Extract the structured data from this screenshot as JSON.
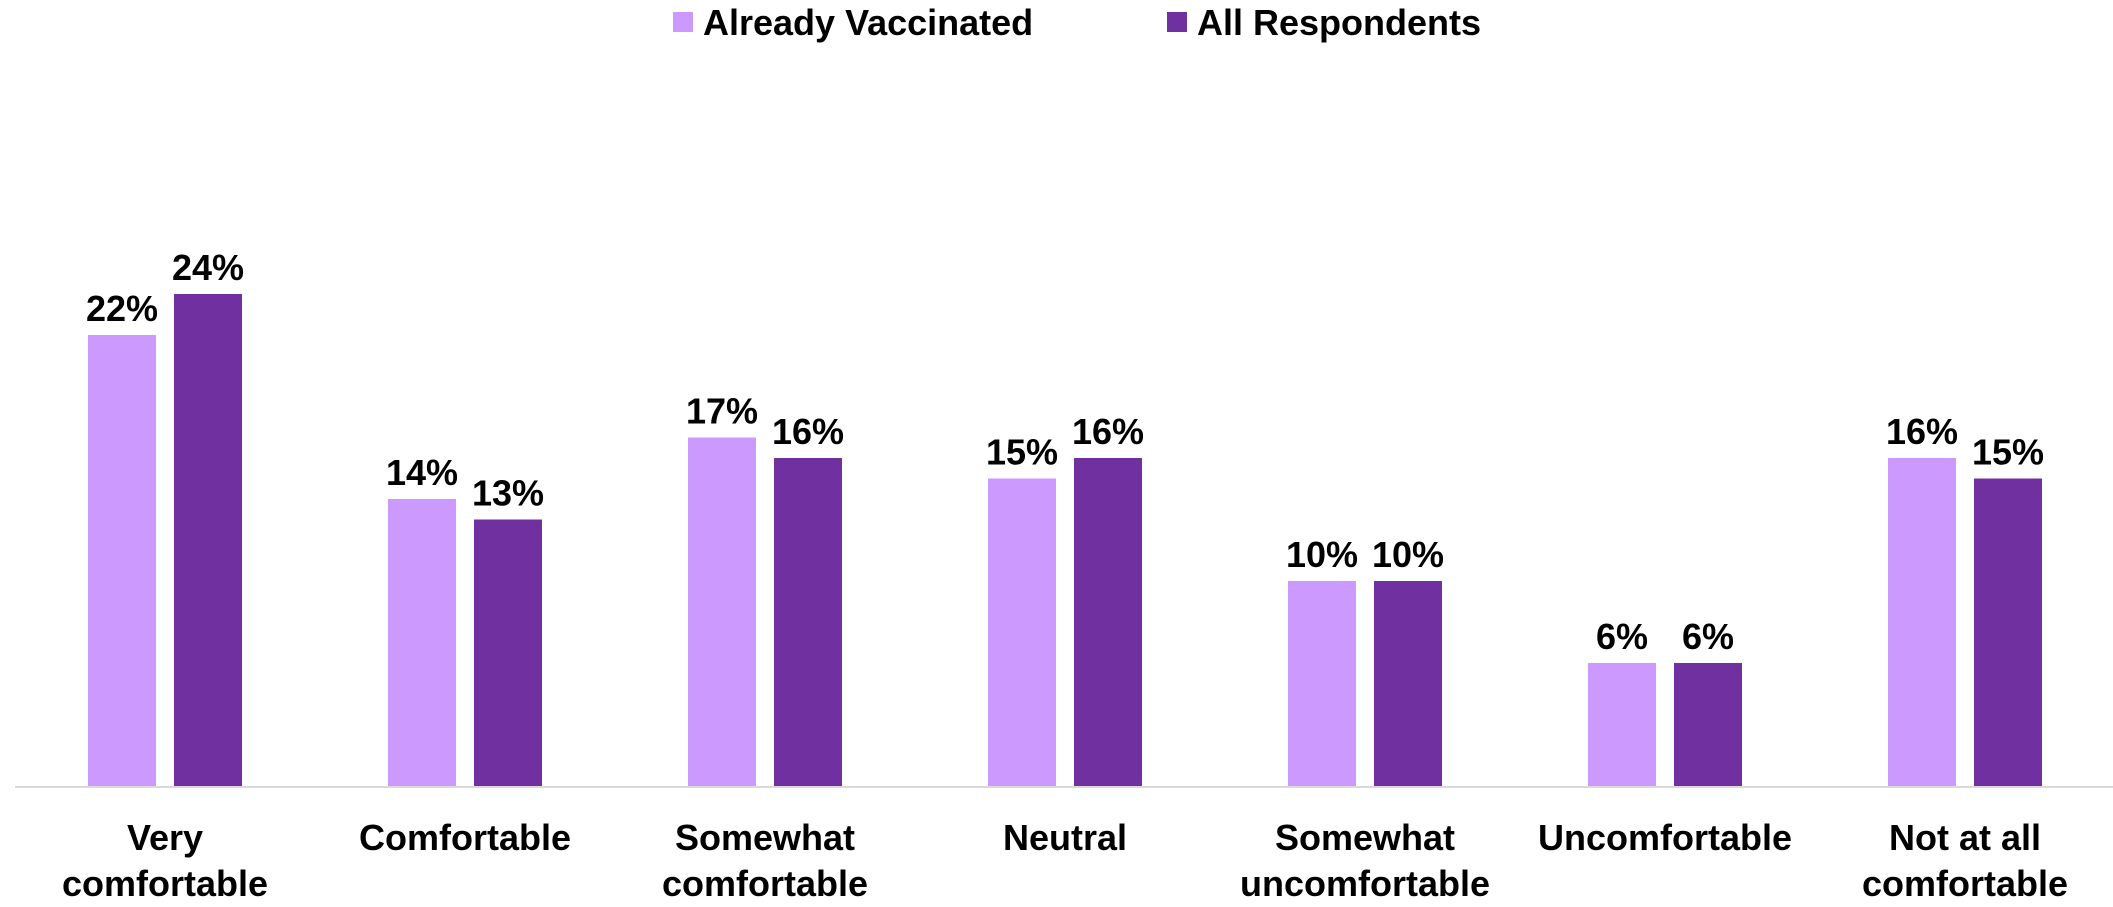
{
  "chart_data": {
    "type": "bar",
    "title": "",
    "xlabel": "",
    "ylabel": "",
    "categories": [
      [
        "Very",
        "comfortable"
      ],
      [
        "Comfortable"
      ],
      [
        "Somewhat",
        "comfortable"
      ],
      [
        "Neutral"
      ],
      [
        "Somewhat",
        "uncomfortable"
      ],
      [
        "Uncomfortable"
      ],
      [
        "Not at all",
        "comfortable"
      ]
    ],
    "series": [
      {
        "name": "Already Vaccinated",
        "color": "#cc99ff",
        "values": [
          22,
          14,
          17,
          15,
          10,
          6,
          16
        ],
        "labels": [
          "22%",
          "14%",
          "17%",
          "15%",
          "10%",
          "6%",
          "16%"
        ]
      },
      {
        "name": "All Respondents",
        "color": "#7030a0",
        "values": [
          24,
          13,
          16,
          16,
          10,
          6,
          15
        ],
        "labels": [
          "24%",
          "13%",
          "16%",
          "16%",
          "10%",
          "6%",
          "15%"
        ]
      }
    ],
    "ylim": [
      0,
      24
    ],
    "grid": false,
    "legend_position": "top-center",
    "axis_line_color": "#d9d9d9"
  }
}
